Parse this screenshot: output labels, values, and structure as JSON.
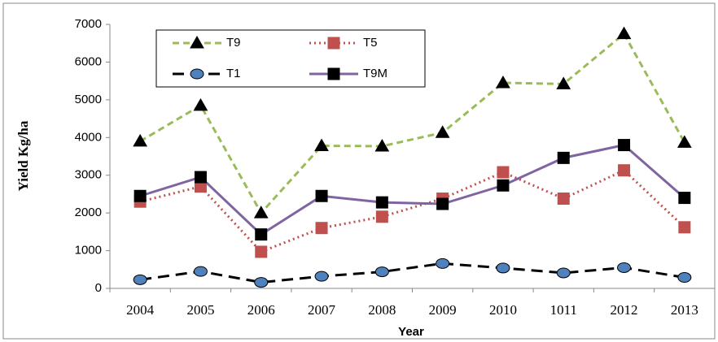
{
  "chart_data": {
    "type": "line",
    "x_label": "Year",
    "y_label": "Yield Kg/ha",
    "categories": [
      "2004",
      "2005",
      "2006",
      "2007",
      "2008",
      "2009",
      "2010",
      "1011",
      "2012",
      "2013"
    ],
    "series": [
      {
        "name": "T9",
        "color": "#9bbb59",
        "marker_color": "#000000",
        "marker": "triangle",
        "dash": "8,5",
        "values": [
          3900,
          4850,
          2000,
          3780,
          3770,
          4130,
          5450,
          5420,
          6750,
          3870
        ]
      },
      {
        "name": "T5",
        "color": "#c0504d",
        "marker_color": "#c0504d",
        "marker": "square",
        "dash": "2,4",
        "values": [
          2300,
          2700,
          970,
          1600,
          1900,
          2380,
          3080,
          2380,
          3130,
          1620
        ]
      },
      {
        "name": "T1",
        "color": "#000000",
        "marker_color": "#4f81bd",
        "marker": "circle",
        "dash": "14,8",
        "values": [
          230,
          450,
          160,
          320,
          440,
          660,
          540,
          410,
          550,
          290
        ]
      },
      {
        "name": "T9M",
        "color": "#8064a2",
        "marker_color": "#000000",
        "marker": "square",
        "dash": "none",
        "values": [
          2450,
          2950,
          1430,
          2450,
          2280,
          2240,
          2730,
          3460,
          3800,
          2400
        ]
      }
    ],
    "ylim": [
      0,
      7000
    ],
    "yticks": [
      0,
      1000,
      2000,
      3000,
      4000,
      5000,
      6000,
      7000
    ],
    "grid": false
  }
}
